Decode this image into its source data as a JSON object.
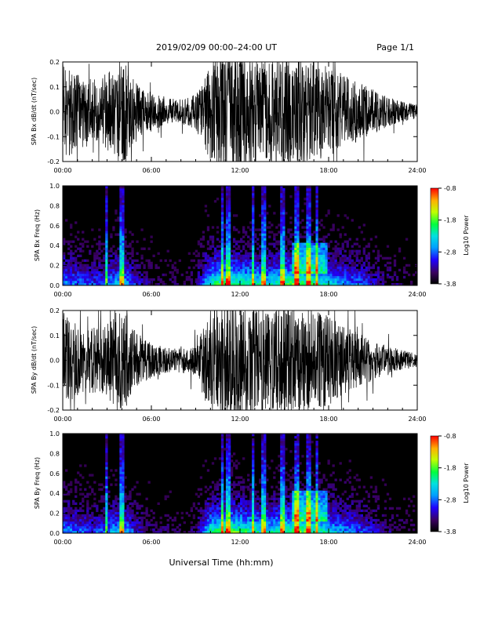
{
  "header": {
    "title": "2019/02/09  00:00–24:00 UT",
    "page": "Page 1/1"
  },
  "footer": {
    "xlabel": "Universal Time (hh:mm)"
  },
  "chart_data": [
    {
      "type": "line",
      "ylabel": "SPA Bx dB/dt (nT/sec)",
      "xlabel": "",
      "x_tick_labels": [
        "00:00",
        "06:00",
        "12:00",
        "18:00",
        "24:00"
      ],
      "xlim": [
        0,
        24
      ],
      "ylim": [
        -0.2,
        0.2
      ],
      "y_tick_labels": [
        "-0.2",
        "-0.1",
        "0.0",
        "0.1",
        "0.2"
      ],
      "series": [
        {
          "color": "#000000",
          "hours": [
            0,
            1,
            2,
            3,
            4,
            5,
            6,
            7,
            8,
            9,
            10,
            11,
            12,
            13,
            14,
            15,
            16,
            17,
            18,
            19,
            20,
            21,
            22,
            23,
            24
          ],
          "amplitude": [
            0.2,
            0.15,
            0.14,
            0.16,
            0.22,
            0.12,
            0.08,
            0.06,
            0.05,
            0.07,
            0.2,
            0.25,
            0.25,
            0.22,
            0.2,
            0.22,
            0.22,
            0.2,
            0.18,
            0.15,
            0.12,
            0.09,
            0.06,
            0.04,
            0.03
          ]
        }
      ]
    },
    {
      "type": "heatmap",
      "ylabel": "SPA Bx Freq (Hz)",
      "x_tick_labels": [
        "00:00",
        "06:00",
        "12:00",
        "18:00",
        "24:00"
      ],
      "xlim": [
        0,
        24
      ],
      "ylim": [
        0.0,
        1.0
      ],
      "y_tick_labels": [
        "0.0",
        "0.2",
        "0.4",
        "0.6",
        "0.8",
        "1.0"
      ],
      "colorbar": {
        "label": "Log10 Power",
        "min": -3.8,
        "max": -0.8,
        "tick_labels": [
          "-3.8",
          "-2.8",
          "-1.8",
          "-0.8"
        ]
      }
    },
    {
      "type": "line",
      "ylabel": "SPA By dB/dt (nT/sec)",
      "xlabel": "",
      "x_tick_labels": [
        "00:00",
        "06:00",
        "12:00",
        "18:00",
        "24:00"
      ],
      "xlim": [
        0,
        24
      ],
      "ylim": [
        -0.2,
        0.2
      ],
      "y_tick_labels": [
        "-0.2",
        "-0.1",
        "0.0",
        "0.1",
        "0.2"
      ],
      "series": [
        {
          "color": "#000000",
          "hours": [
            0,
            1,
            2,
            3,
            4,
            5,
            6,
            7,
            8,
            9,
            10,
            11,
            12,
            13,
            14,
            15,
            16,
            17,
            18,
            19,
            20,
            21,
            22,
            23,
            24
          ],
          "amplitude": [
            0.2,
            0.14,
            0.13,
            0.15,
            0.22,
            0.11,
            0.07,
            0.05,
            0.05,
            0.06,
            0.2,
            0.25,
            0.25,
            0.22,
            0.2,
            0.22,
            0.21,
            0.2,
            0.18,
            0.14,
            0.11,
            0.08,
            0.06,
            0.04,
            0.03
          ]
        }
      ]
    },
    {
      "type": "heatmap",
      "ylabel": "SPA By Freq (Hz)",
      "x_tick_labels": [
        "00:00",
        "06:00",
        "12:00",
        "18:00",
        "24:00"
      ],
      "xlim": [
        0,
        24
      ],
      "ylim": [
        0.0,
        1.0
      ],
      "y_tick_labels": [
        "0.0",
        "0.2",
        "0.4",
        "0.6",
        "0.8",
        "1.0"
      ],
      "colorbar": {
        "label": "Log10 Power",
        "min": -3.8,
        "max": -0.8,
        "tick_labels": [
          "-3.8",
          "-2.8",
          "-1.8",
          "-0.8"
        ]
      }
    }
  ]
}
